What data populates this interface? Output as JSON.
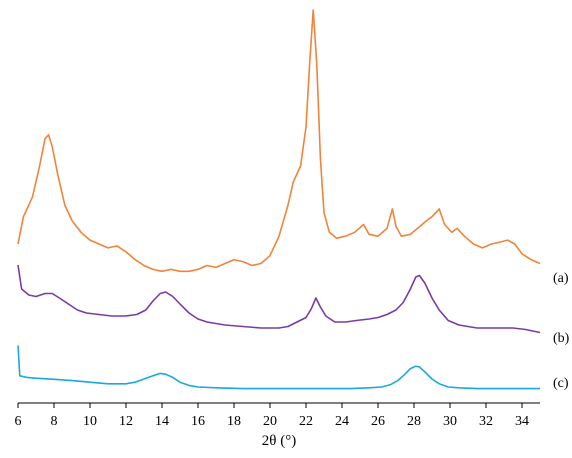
{
  "chart_data": {
    "type": "line",
    "title": "",
    "xlabel": "2θ (°)",
    "ylabel": "",
    "xlim": [
      6,
      35
    ],
    "y_units": "relative intensity (0–1, no y-axis shown)",
    "grid": false,
    "x_ticks": [
      6,
      8,
      10,
      12,
      14,
      16,
      18,
      20,
      22,
      24,
      26,
      28,
      30,
      32,
      34
    ],
    "series": [
      {
        "name": "(a)",
        "color": "#F0843A",
        "points": [
          [
            6.0,
            0.4
          ],
          [
            6.3,
            0.47
          ],
          [
            6.8,
            0.52
          ],
          [
            7.2,
            0.6
          ],
          [
            7.5,
            0.67
          ],
          [
            7.7,
            0.68
          ],
          [
            7.9,
            0.65
          ],
          [
            8.2,
            0.58
          ],
          [
            8.6,
            0.5
          ],
          [
            9.0,
            0.46
          ],
          [
            9.5,
            0.43
          ],
          [
            10.0,
            0.41
          ],
          [
            10.5,
            0.4
          ],
          [
            11.0,
            0.39
          ],
          [
            11.5,
            0.395
          ],
          [
            12.0,
            0.38
          ],
          [
            12.5,
            0.36
          ],
          [
            13.0,
            0.345
          ],
          [
            13.5,
            0.335
          ],
          [
            14.0,
            0.33
          ],
          [
            14.5,
            0.335
          ],
          [
            15.0,
            0.33
          ],
          [
            15.5,
            0.33
          ],
          [
            16.0,
            0.335
          ],
          [
            16.5,
            0.345
          ],
          [
            17.0,
            0.34
          ],
          [
            17.5,
            0.35
          ],
          [
            18.0,
            0.36
          ],
          [
            18.5,
            0.355
          ],
          [
            19.0,
            0.345
          ],
          [
            19.5,
            0.35
          ],
          [
            20.0,
            0.37
          ],
          [
            20.5,
            0.42
          ],
          [
            21.0,
            0.5
          ],
          [
            21.3,
            0.56
          ],
          [
            21.7,
            0.6
          ],
          [
            22.0,
            0.7
          ],
          [
            22.2,
            0.86
          ],
          [
            22.4,
            1.0
          ],
          [
            22.6,
            0.86
          ],
          [
            22.8,
            0.62
          ],
          [
            23.0,
            0.48
          ],
          [
            23.3,
            0.43
          ],
          [
            23.7,
            0.415
          ],
          [
            24.2,
            0.42
          ],
          [
            24.7,
            0.43
          ],
          [
            25.2,
            0.45
          ],
          [
            25.5,
            0.425
          ],
          [
            26.0,
            0.42
          ],
          [
            26.5,
            0.44
          ],
          [
            26.8,
            0.49
          ],
          [
            27.0,
            0.445
          ],
          [
            27.3,
            0.42
          ],
          [
            27.8,
            0.425
          ],
          [
            28.2,
            0.44
          ],
          [
            28.7,
            0.46
          ],
          [
            29.0,
            0.47
          ],
          [
            29.4,
            0.49
          ],
          [
            29.7,
            0.45
          ],
          [
            30.1,
            0.43
          ],
          [
            30.4,
            0.44
          ],
          [
            30.8,
            0.42
          ],
          [
            31.3,
            0.4
          ],
          [
            31.8,
            0.39
          ],
          [
            32.3,
            0.4
          ],
          [
            32.8,
            0.405
          ],
          [
            33.2,
            0.41
          ],
          [
            33.6,
            0.4
          ],
          [
            34.0,
            0.375
          ],
          [
            34.5,
            0.36
          ],
          [
            35.0,
            0.35
          ]
        ]
      },
      {
        "name": "(b)",
        "color": "#7B3AA6",
        "points": [
          [
            6.0,
            0.35
          ],
          [
            6.2,
            0.27
          ],
          [
            6.6,
            0.25
          ],
          [
            7.0,
            0.245
          ],
          [
            7.5,
            0.255
          ],
          [
            7.9,
            0.255
          ],
          [
            8.3,
            0.24
          ],
          [
            8.8,
            0.22
          ],
          [
            9.3,
            0.2
          ],
          [
            9.8,
            0.19
          ],
          [
            10.5,
            0.185
          ],
          [
            11.2,
            0.18
          ],
          [
            12.0,
            0.18
          ],
          [
            12.6,
            0.185
          ],
          [
            13.1,
            0.2
          ],
          [
            13.5,
            0.23
          ],
          [
            13.9,
            0.255
          ],
          [
            14.2,
            0.26
          ],
          [
            14.6,
            0.245
          ],
          [
            15.0,
            0.22
          ],
          [
            15.5,
            0.19
          ],
          [
            16.0,
            0.17
          ],
          [
            16.5,
            0.16
          ],
          [
            17.5,
            0.15
          ],
          [
            18.5,
            0.145
          ],
          [
            19.5,
            0.14
          ],
          [
            20.5,
            0.14
          ],
          [
            21.0,
            0.145
          ],
          [
            21.5,
            0.16
          ],
          [
            22.0,
            0.175
          ],
          [
            22.3,
            0.205
          ],
          [
            22.55,
            0.24
          ],
          [
            22.8,
            0.21
          ],
          [
            23.1,
            0.18
          ],
          [
            23.6,
            0.16
          ],
          [
            24.2,
            0.16
          ],
          [
            24.8,
            0.165
          ],
          [
            25.5,
            0.17
          ],
          [
            26.0,
            0.175
          ],
          [
            26.5,
            0.185
          ],
          [
            27.0,
            0.2
          ],
          [
            27.4,
            0.225
          ],
          [
            27.8,
            0.27
          ],
          [
            28.1,
            0.31
          ],
          [
            28.3,
            0.315
          ],
          [
            28.6,
            0.29
          ],
          [
            29.0,
            0.24
          ],
          [
            29.4,
            0.2
          ],
          [
            29.9,
            0.165
          ],
          [
            30.5,
            0.15
          ],
          [
            31.5,
            0.14
          ],
          [
            32.5,
            0.14
          ],
          [
            33.5,
            0.14
          ],
          [
            34.2,
            0.135
          ],
          [
            35.0,
            0.125
          ]
        ]
      },
      {
        "name": "(c)",
        "color": "#1BA7E0",
        "points": [
          [
            6.0,
            0.31
          ],
          [
            6.1,
            0.12
          ],
          [
            6.5,
            0.11
          ],
          [
            7.0,
            0.105
          ],
          [
            8.0,
            0.098
          ],
          [
            9.0,
            0.09
          ],
          [
            10.0,
            0.08
          ],
          [
            11.0,
            0.07
          ],
          [
            12.0,
            0.07
          ],
          [
            12.5,
            0.08
          ],
          [
            13.0,
            0.1
          ],
          [
            13.5,
            0.12
          ],
          [
            13.9,
            0.135
          ],
          [
            14.2,
            0.13
          ],
          [
            14.6,
            0.11
          ],
          [
            15.0,
            0.08
          ],
          [
            15.5,
            0.06
          ],
          [
            16.0,
            0.05
          ],
          [
            17.0,
            0.045
          ],
          [
            18.5,
            0.04
          ],
          [
            20.0,
            0.04
          ],
          [
            21.5,
            0.04
          ],
          [
            23.0,
            0.04
          ],
          [
            24.5,
            0.04
          ],
          [
            25.5,
            0.045
          ],
          [
            26.2,
            0.05
          ],
          [
            26.7,
            0.065
          ],
          [
            27.1,
            0.09
          ],
          [
            27.5,
            0.13
          ],
          [
            27.8,
            0.165
          ],
          [
            28.1,
            0.18
          ],
          [
            28.3,
            0.175
          ],
          [
            28.6,
            0.145
          ],
          [
            29.0,
            0.1
          ],
          [
            29.4,
            0.07
          ],
          [
            29.9,
            0.05
          ],
          [
            30.5,
            0.045
          ],
          [
            31.5,
            0.04
          ],
          [
            32.5,
            0.04
          ],
          [
            33.5,
            0.04
          ],
          [
            35.0,
            0.04
          ]
        ]
      }
    ]
  }
}
